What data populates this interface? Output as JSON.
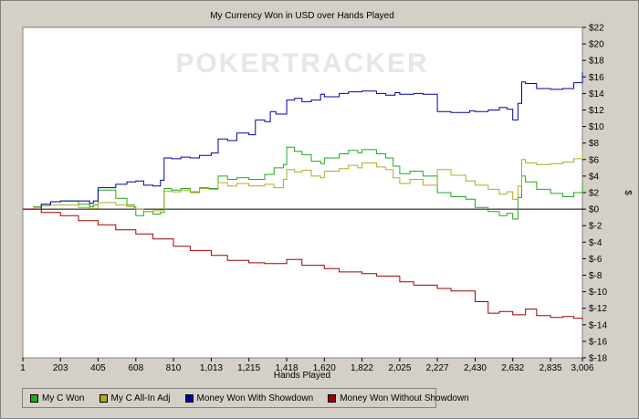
{
  "chart_data": {
    "type": "line",
    "title": "My Currency Won in USD over Hands Played",
    "xlabel": "Hands Played",
    "ylabel": "$",
    "watermark": "POKERTRACKER",
    "xlim": [
      1,
      3006
    ],
    "ylim": [
      -18,
      22
    ],
    "x_ticks": [
      1,
      203,
      405,
      608,
      810,
      1013,
      1215,
      1418,
      1620,
      1822,
      2025,
      2227,
      2430,
      2632,
      2835,
      3006
    ],
    "x_tick_labels": [
      "1",
      "203",
      "405",
      "608",
      "810",
      "1,013",
      "1,215",
      "1,418",
      "1,620",
      "1,822",
      "2,025",
      "2,227",
      "2,430",
      "2,632",
      "2,835",
      "3,006"
    ],
    "y_ticks": [
      -18,
      -16,
      -14,
      -12,
      -10,
      -8,
      -6,
      -4,
      -2,
      0,
      2,
      4,
      6,
      8,
      10,
      12,
      14,
      16,
      18,
      20,
      22
    ],
    "y_tick_labels": [
      "$-18",
      "$-16",
      "$-14",
      "$-12",
      "$-10",
      "$-8",
      "$-6",
      "$-4",
      "$-2",
      "$0",
      "$2",
      "$4",
      "$6",
      "$8",
      "$10",
      "$12",
      "$14",
      "$16",
      "$18",
      "$20",
      "$22"
    ],
    "grid": "none",
    "legend_position": "bottom-left",
    "series": [
      {
        "name": "My C Won",
        "color": "#1faa1f",
        "x": [
          1,
          60,
          100,
          150,
          203,
          300,
          360,
          380,
          405,
          500,
          560,
          600,
          608,
          650,
          700,
          740,
          760,
          800,
          850,
          900,
          950,
          1000,
          1050,
          1100,
          1150,
          1215,
          1300,
          1350,
          1400,
          1418,
          1460,
          1500,
          1550,
          1600,
          1620,
          1700,
          1750,
          1800,
          1822,
          1900,
          1950,
          1990,
          2025,
          2080,
          2150,
          2227,
          2300,
          2380,
          2430,
          2500,
          2560,
          2600,
          2632,
          2660,
          2680,
          2700,
          2760,
          2835,
          2900,
          2960,
          3006
        ],
        "y": [
          0,
          0.3,
          0.6,
          0.9,
          1.0,
          0.6,
          0.3,
          0.5,
          2.3,
          1.3,
          0.5,
          0.2,
          -0.8,
          -0.3,
          -0.6,
          -0.4,
          2.5,
          2.3,
          2.5,
          2.1,
          2.6,
          2.5,
          4.0,
          3.6,
          3.8,
          3.6,
          4.2,
          5.0,
          5.4,
          7.5,
          7.0,
          6.6,
          5.8,
          5.5,
          6.2,
          6.7,
          7.1,
          6.8,
          7.2,
          6.7,
          6.2,
          5.2,
          4.3,
          4.6,
          4.0,
          2.0,
          1.5,
          1.2,
          0.2,
          -0.3,
          -0.8,
          -0.5,
          -1.2,
          1.4,
          4.0,
          3.3,
          2.4,
          1.9,
          1.5,
          2.0,
          3.4
        ]
      },
      {
        "name": "My C All-In Adj",
        "color": "#b0ac1c",
        "x": [
          1,
          60,
          100,
          150,
          203,
          300,
          360,
          405,
          500,
          560,
          608,
          650,
          700,
          740,
          760,
          800,
          850,
          900,
          950,
          1000,
          1050,
          1100,
          1150,
          1215,
          1300,
          1350,
          1400,
          1418,
          1460,
          1500,
          1550,
          1600,
          1620,
          1700,
          1750,
          1800,
          1822,
          1900,
          1950,
          1990,
          2025,
          2080,
          2150,
          2227,
          2300,
          2380,
          2430,
          2500,
          2560,
          2600,
          2632,
          2660,
          2680,
          2700,
          2760,
          2835,
          2900,
          2960,
          3006
        ],
        "y": [
          0,
          0.2,
          0.4,
          0.5,
          0.5,
          0.2,
          0.1,
          0.8,
          0.5,
          0.3,
          0.0,
          -0.3,
          -0.2,
          -0.1,
          2.2,
          2.1,
          2.3,
          2.0,
          2.5,
          2.4,
          3.2,
          2.8,
          3.1,
          2.8,
          3.0,
          2.6,
          3.6,
          4.8,
          4.5,
          4.7,
          4.0,
          3.8,
          4.6,
          4.9,
          5.3,
          5.0,
          5.6,
          5.1,
          4.8,
          3.8,
          3.1,
          3.6,
          2.9,
          4.8,
          4.1,
          3.4,
          2.9,
          2.4,
          1.8,
          2.1,
          1.2,
          2.8,
          6.0,
          5.6,
          5.4,
          5.5,
          5.7,
          6.1,
          7.3
        ]
      },
      {
        "name": "Money Won With Showdown",
        "color": "#0000a0",
        "x": [
          1,
          100,
          150,
          203,
          300,
          360,
          380,
          405,
          500,
          560,
          608,
          650,
          700,
          740,
          760,
          800,
          850,
          900,
          950,
          1013,
          1050,
          1100,
          1150,
          1215,
          1250,
          1300,
          1330,
          1360,
          1418,
          1460,
          1500,
          1550,
          1600,
          1620,
          1700,
          1750,
          1822,
          1900,
          1950,
          2000,
          2025,
          2100,
          2150,
          2227,
          2300,
          2400,
          2430,
          2500,
          2560,
          2600,
          2632,
          2660,
          2680,
          2700,
          2760,
          2835,
          2900,
          2960,
          3006
        ],
        "y": [
          0,
          0.6,
          0.9,
          1.0,
          1.0,
          0.7,
          1.0,
          2.6,
          3.0,
          3.3,
          3.4,
          2.9,
          2.8,
          3.5,
          6.2,
          6.1,
          6.3,
          6.2,
          6.5,
          6.8,
          8.5,
          8.3,
          9.2,
          9.0,
          10.8,
          10.6,
          11.8,
          11.5,
          13.2,
          13.4,
          13.0,
          13.2,
          13.9,
          13.6,
          14.0,
          14.2,
          14.3,
          14.0,
          13.8,
          14.1,
          13.9,
          14.0,
          13.9,
          11.8,
          11.7,
          11.9,
          11.8,
          12.0,
          12.3,
          12.1,
          10.8,
          12.8,
          15.4,
          15.2,
          14.6,
          14.5,
          14.6,
          15.3,
          16.6
        ]
      },
      {
        "name": "Money Won Without Showdown",
        "color": "#a00000",
        "x": [
          1,
          100,
          203,
          300,
          405,
          500,
          608,
          700,
          810,
          900,
          1013,
          1100,
          1215,
          1300,
          1418,
          1500,
          1620,
          1700,
          1822,
          1900,
          2025,
          2100,
          2227,
          2300,
          2430,
          2500,
          2560,
          2632,
          2700,
          2760,
          2835,
          2900,
          2960,
          3006
        ],
        "y": [
          0,
          -0.4,
          -0.8,
          -1.4,
          -1.9,
          -2.5,
          -3.0,
          -3.6,
          -4.5,
          -5.0,
          -5.6,
          -6.2,
          -6.5,
          -6.6,
          -6.1,
          -6.8,
          -7.2,
          -7.6,
          -7.8,
          -8.1,
          -8.8,
          -9.2,
          -9.6,
          -9.9,
          -11.2,
          -12.6,
          -12.4,
          -12.8,
          -12.1,
          -12.9,
          -13.1,
          -13.0,
          -13.2,
          -13.4
        ]
      }
    ]
  }
}
